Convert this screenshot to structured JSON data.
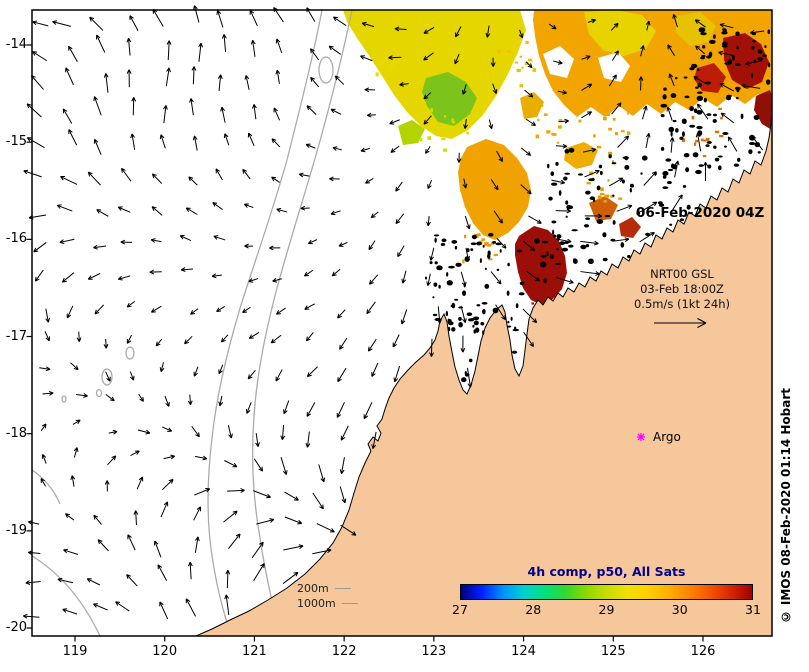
{
  "annotations": {
    "datetime_label": "06-Feb-2020 04Z",
    "vector_legend": {
      "line1": "NRT00 GSL",
      "line2": "03-Feb 18:00Z",
      "line3": "0.5m/s (1kt 24h)"
    },
    "argo_label": "Argo",
    "copyright": "© IMOS 08-Feb-2020 01:14 Hobart"
  },
  "depth_legend": {
    "items": [
      {
        "label": "200m"
      },
      {
        "label": "1000m"
      }
    ]
  },
  "colorbar": {
    "title": "4h comp, p50, All Sats",
    "title_color": "#00008b",
    "ticks": [
      "27",
      "28",
      "29",
      "30",
      "31"
    ],
    "colors": [
      "#000080",
      "#0020ff",
      "#0090ff",
      "#00d0d0",
      "#00e080",
      "#30d830",
      "#8cd800",
      "#c8dc00",
      "#f0e000",
      "#ffd000",
      "#ffae00",
      "#ff8400",
      "#f25400",
      "#d42600",
      "#a00000"
    ]
  },
  "axes": {
    "x_ticks": [
      "119",
      "120",
      "121",
      "122",
      "123",
      "124",
      "125",
      "126"
    ],
    "y_ticks": [
      "-14",
      "-15",
      "-16",
      "-17",
      "-18",
      "-19",
      "-20"
    ]
  },
  "map": {
    "land_color": "#f5c79b",
    "argo_marker_color": "#ff00ff",
    "contour_color": "#ababab"
  },
  "chart_data": {
    "type": "map",
    "x_axis_ticks": [
      119,
      120,
      121,
      122,
      123,
      124,
      125,
      126
    ],
    "y_axis_ticks": [
      -14,
      -15,
      -16,
      -17,
      -18,
      -19,
      -20
    ],
    "colorbar": {
      "title": "4h comp, p50, All Sats",
      "tick_values": [
        27,
        28,
        29,
        30,
        31
      ],
      "range": [
        27,
        31
      ]
    },
    "overlays": [
      "sst_field",
      "current_vector_arrows",
      "bathymetry_contours_200m_1000m",
      "argo_float_marker"
    ],
    "vector_scale_label": "0.5m/s (1kt 24h)",
    "vector_product": "NRT00 GSL 03-Feb 18:00Z",
    "sst_datetime": "06-Feb-2020 04Z"
  }
}
